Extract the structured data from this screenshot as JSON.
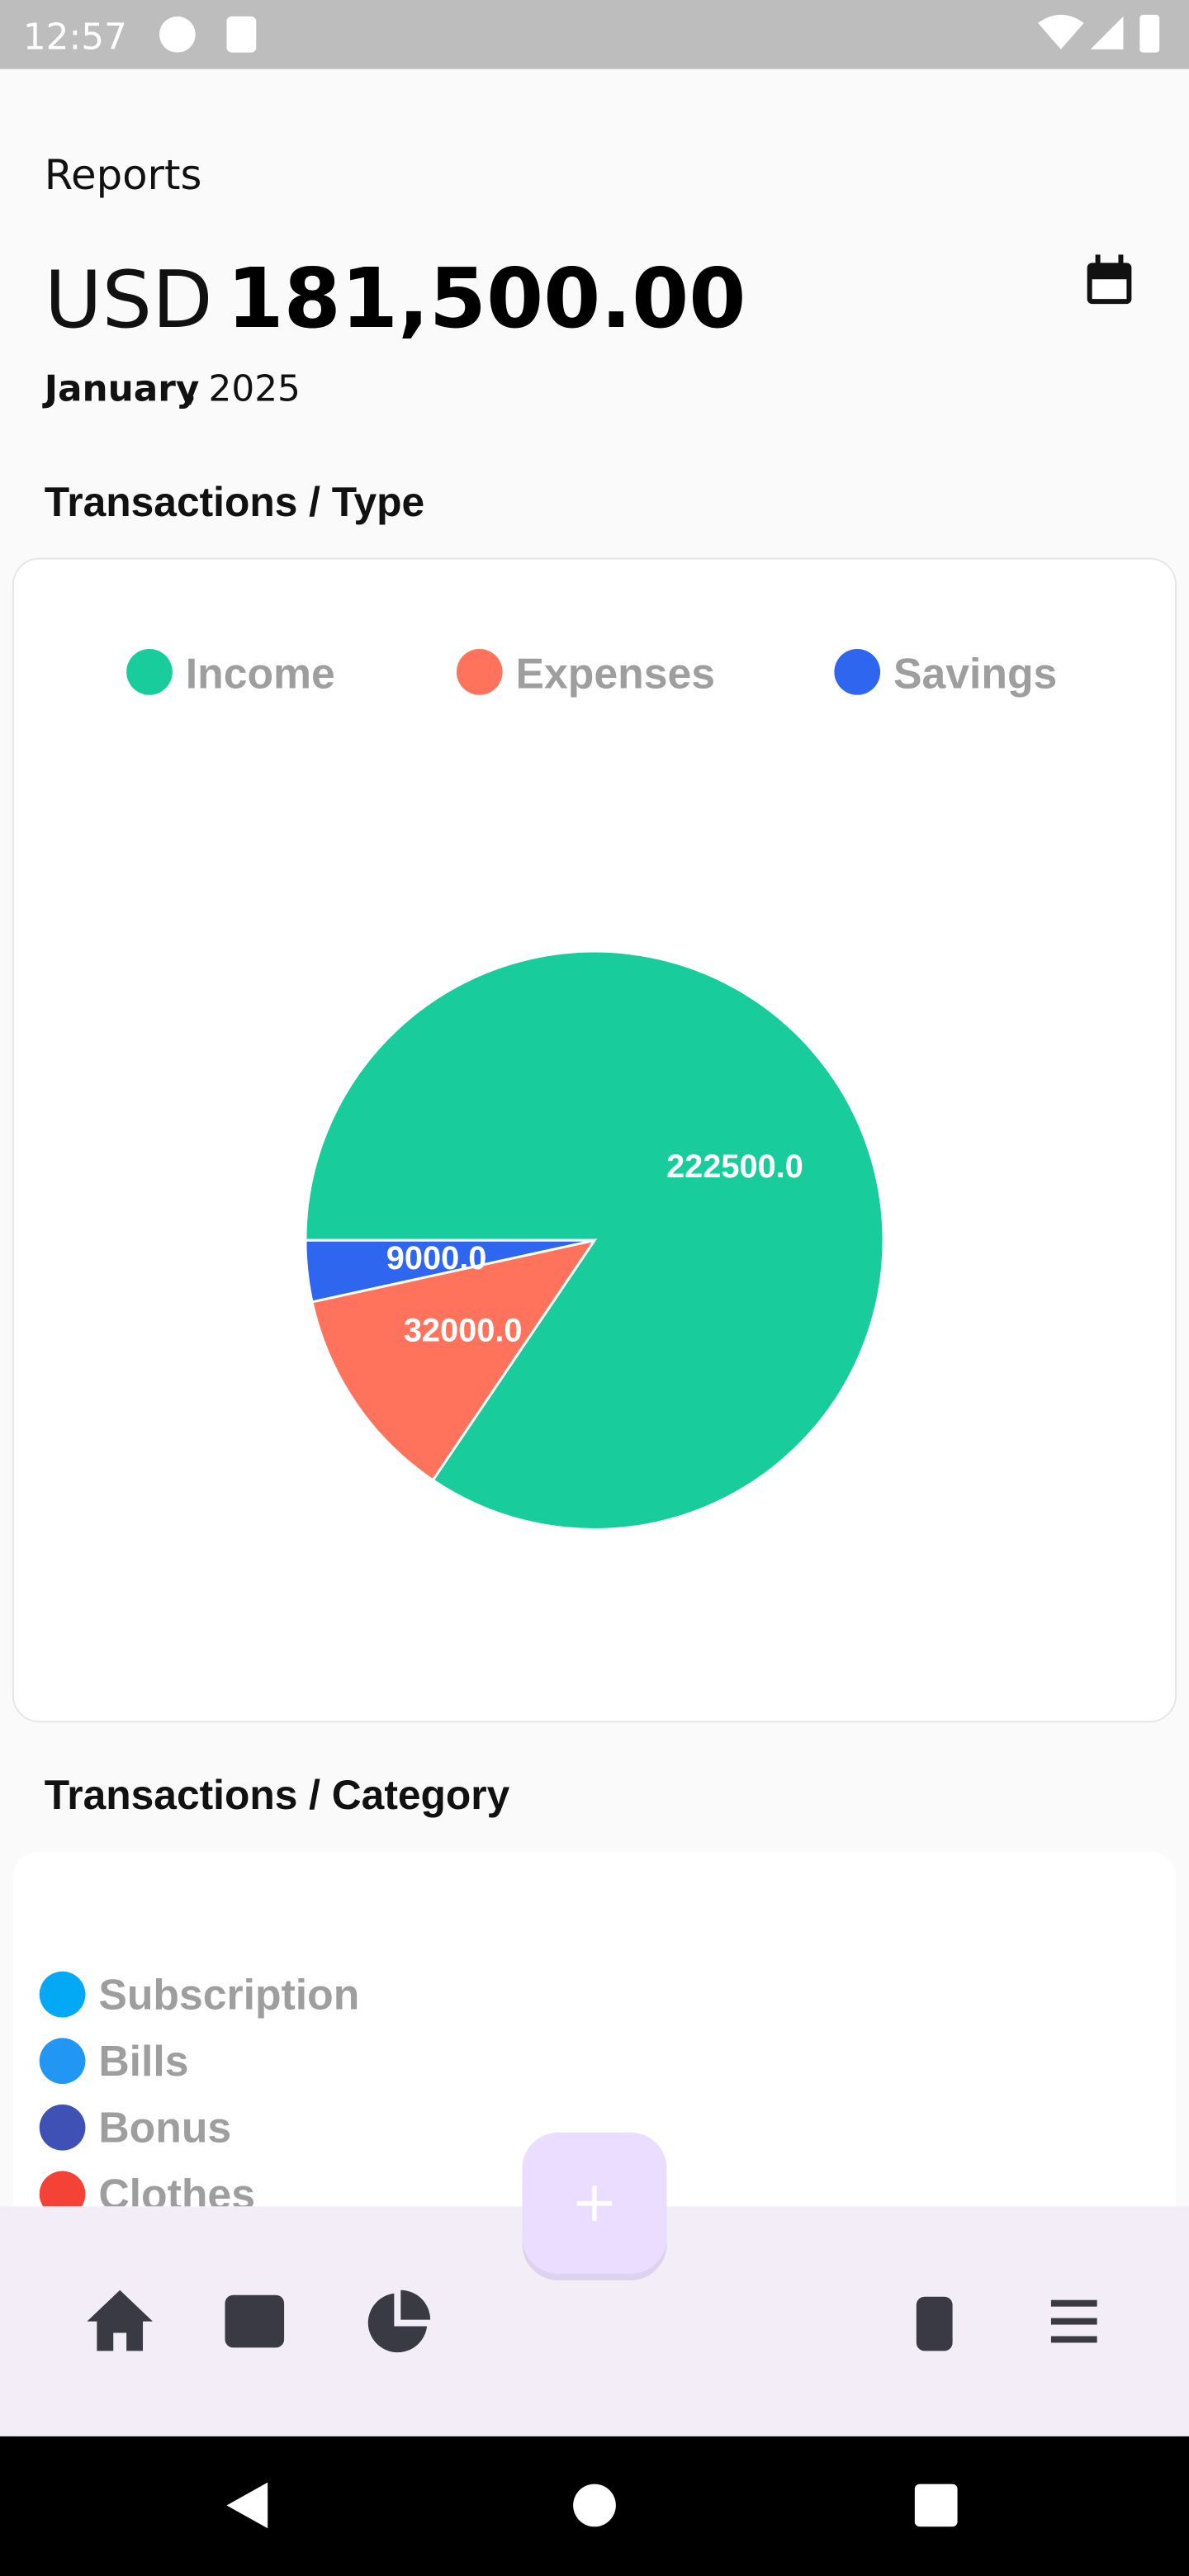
{
  "status_bar": {
    "time": "12:57"
  },
  "header": {
    "title": "Reports",
    "currency": "USD",
    "amount": "181,500.00",
    "month": "January",
    "year_text": ", 2025"
  },
  "sections": {
    "type_title": "Transactions / Type",
    "category_title": "Transactions / Category"
  },
  "chart_data": {
    "type": "pie",
    "categories": [
      "Income",
      "Expenses",
      "Savings"
    ],
    "values": [
      222500,
      32000,
      9000
    ],
    "value_labels": [
      "222500.0",
      "32000.0",
      "9000.0"
    ],
    "colors": [
      "#19cc9b",
      "#ff735c",
      "#2e66f0"
    ],
    "legend": "top"
  },
  "category_legend": {
    "items": [
      "Subscription",
      "Bills",
      "Bonus",
      "Clothes"
    ],
    "colors": [
      "#03a9f4",
      "#2196f3",
      "#3f51b5",
      "#f44336"
    ]
  },
  "fab": {
    "label": "+"
  }
}
